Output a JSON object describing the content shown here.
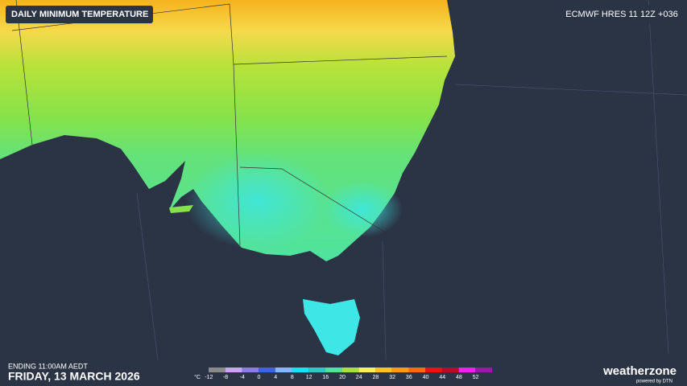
{
  "header": {
    "title": "DAILY MINIMUM TEMPERATURE",
    "model": "ECMWF HRES 11 12Z +036"
  },
  "footer": {
    "ending": "ENDING 11:00AM AEDT",
    "date": "FRIDAY, 13 MARCH 2026"
  },
  "legend": {
    "unit": "°C",
    "ticks": [
      -12,
      -8,
      -4,
      0,
      4,
      8,
      12,
      16,
      20,
      24,
      28,
      32,
      36,
      40,
      44,
      48,
      52
    ],
    "colors": [
      "#8a8a8a",
      "#c9a6ef",
      "#8f7be6",
      "#3e63e6",
      "#86b6ff",
      "#12e4f5",
      "#2ec9c4",
      "#4fe39b",
      "#a6e23a",
      "#f6f05a",
      "#ffc21e",
      "#ff9a12",
      "#ff6a10",
      "#f01010",
      "#b80c2a",
      "#f020f0",
      "#9a18a8"
    ]
  },
  "brand": {
    "name": "weatherzone",
    "tagline": "powered by DTN"
  }
}
